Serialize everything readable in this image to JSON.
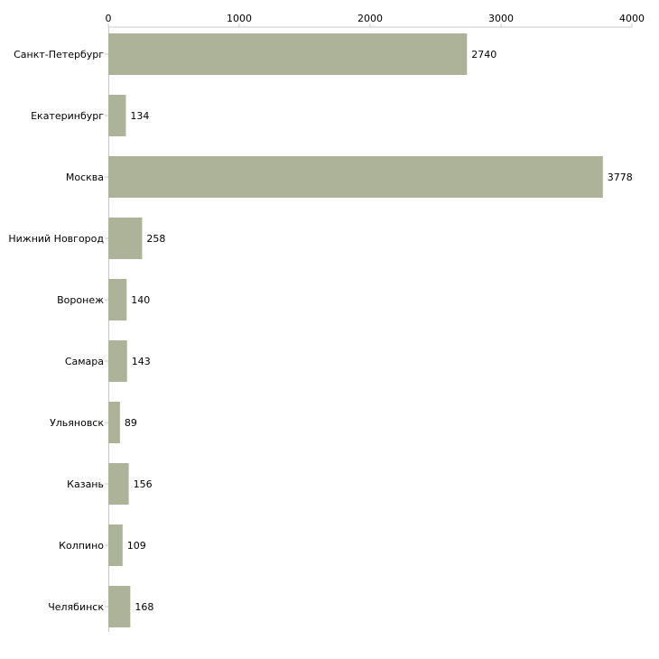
{
  "colors": {
    "bar": "#adb398",
    "axis": "#c8c8c8",
    "tick": "#c8c8c8",
    "text": "#000000",
    "background": "#ffffff"
  },
  "chart_data": {
    "type": "bar",
    "orientation": "horizontal",
    "title": "",
    "xlabel": "",
    "ylabel": "",
    "xlim": [
      0,
      4000
    ],
    "xticks": [
      0,
      1000,
      2000,
      3000,
      4000
    ],
    "x_axis_position": "top",
    "grid": false,
    "categories": [
      "Санкт-Петербург",
      "Екатеринбург",
      "Москва",
      "Нижний Новгород",
      "Воронеж",
      "Самара",
      "Ульяновск",
      "Казань",
      "Колпино",
      "Челябинск"
    ],
    "values": [
      2740,
      134,
      3778,
      258,
      140,
      143,
      89,
      156,
      109,
      168
    ],
    "data_labels": [
      "2740",
      "134",
      "3778",
      "258",
      "140",
      "143",
      "89",
      "156",
      "109",
      "168"
    ]
  }
}
